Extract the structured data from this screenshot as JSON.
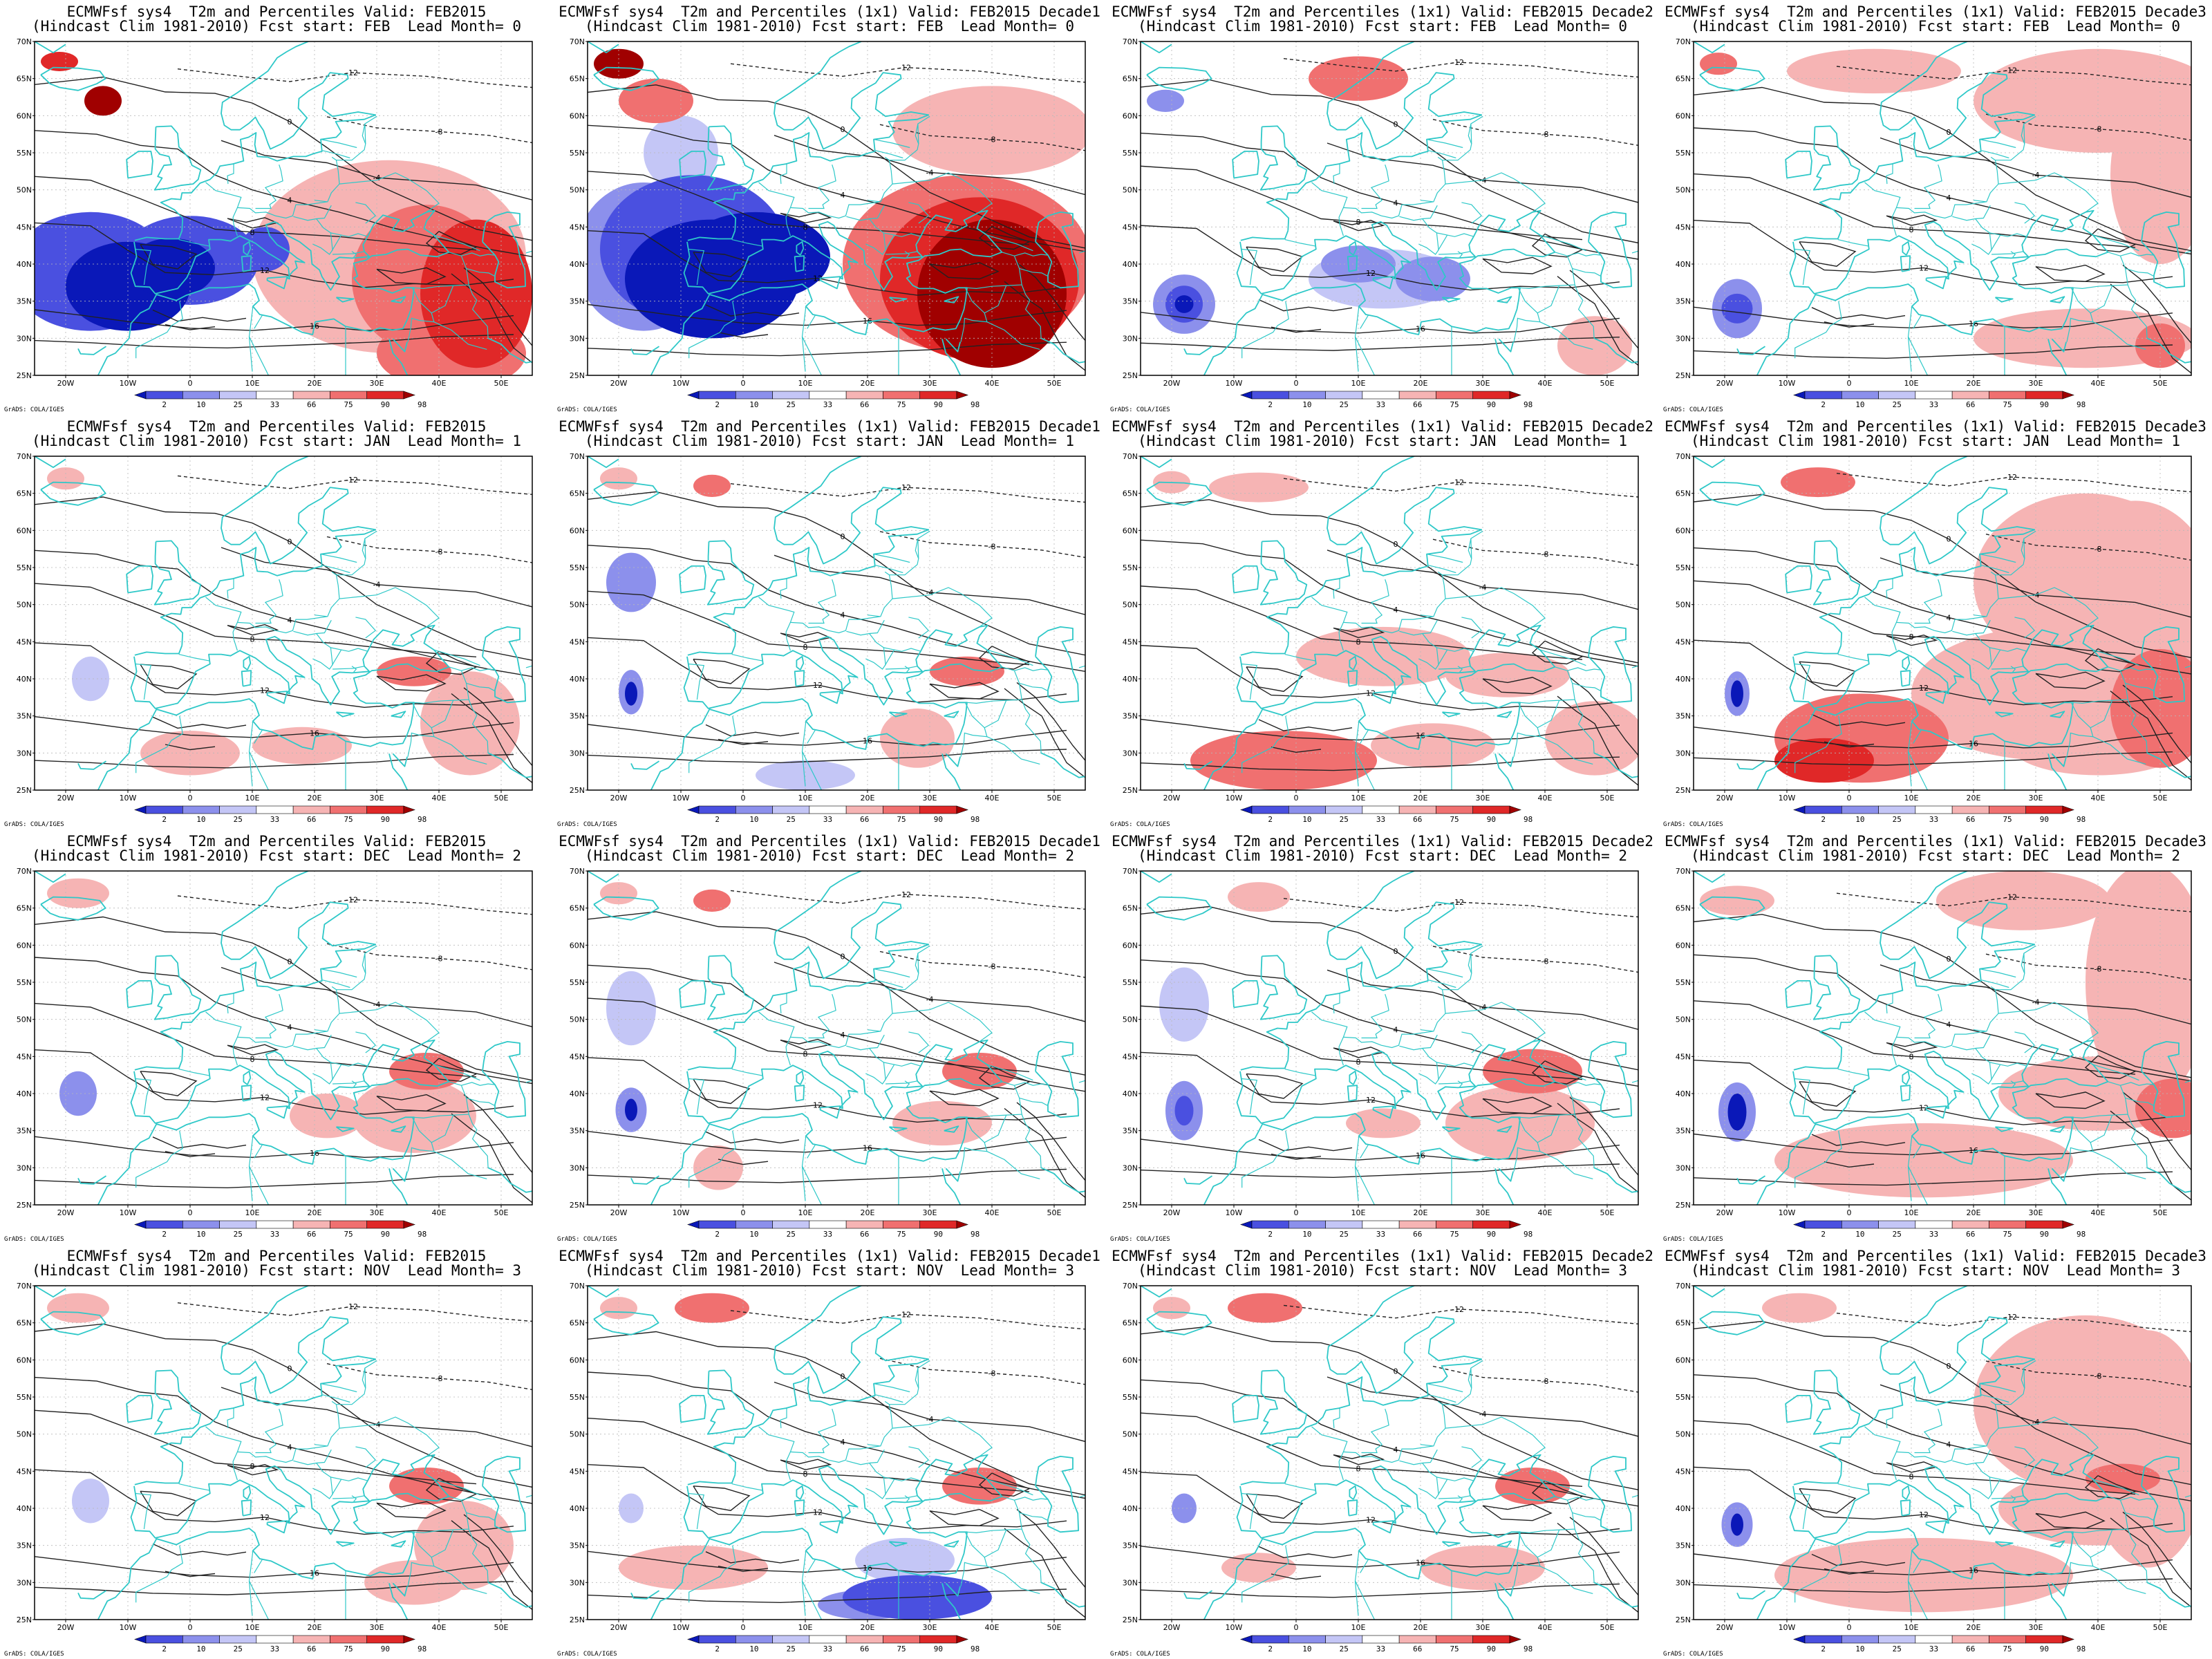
{
  "colors": {
    "land": "#2ec8c8",
    "contour": "#222222",
    "blue": [
      "#0a18b8",
      "#4a50e0",
      "#8c90ec",
      "#c4c6f6"
    ],
    "red": [
      "#a00000",
      "#e02828",
      "#f07070",
      "#f6b4b4"
    ],
    "neutral": "#ffffff"
  },
  "map_labels": {
    "lat": [
      "70N",
      "65N",
      "60N",
      "55N",
      "50N",
      "45N",
      "40N",
      "35N",
      "30N",
      "25N"
    ],
    "lon": [
      "20W",
      "10W",
      "0",
      "10E",
      "20E",
      "30E",
      "40E",
      "50E"
    ]
  },
  "colorbar": {
    "labels": [
      "2",
      "10",
      "25",
      "33",
      "66",
      "75",
      "90",
      "98"
    ],
    "colors": [
      "#0a18b8",
      "#4a50e0",
      "#8c90ec",
      "#c4c6f6",
      "#ffffff",
      "#f6b4b4",
      "#f07070",
      "#e02828",
      "#a00000"
    ]
  },
  "grads_credit": "GrADS: COLA/IGES",
  "panels": [
    {
      "line1": "ECMWFsf sys4  T2m and Percentiles Valid: FEB2015",
      "line2": "(Hindcast Clim 1981-2010) Fcst start: FEB  Lead Month= 0"
    },
    {
      "line1": "ECMWFsf sys4  T2m and Percentiles (1x1) Valid: FEB2015 Decade1",
      "line2": "(Hindcast Clim 1981-2010) Fcst start: FEB  Lead Month= 0"
    },
    {
      "line1": "ECMWFsf sys4  T2m and Percentiles (1x1) Valid: FEB2015 Decade2",
      "line2": "(Hindcast Clim 1981-2010) Fcst start: FEB  Lead Month= 0"
    },
    {
      "line1": "ECMWFsf sys4  T2m and Percentiles (1x1) Valid: FEB2015 Decade3",
      "line2": "(Hindcast Clim 1981-2010) Fcst start: FEB  Lead Month= 0"
    },
    {
      "line1": "ECMWFsf sys4  T2m and Percentiles Valid: FEB2015",
      "line2": "(Hindcast Clim 1981-2010) Fcst start: JAN  Lead Month= 1"
    },
    {
      "line1": "ECMWFsf sys4  T2m and Percentiles (1x1) Valid: FEB2015 Decade1",
      "line2": "(Hindcast Clim 1981-2010) Fcst start: JAN  Lead Month= 1"
    },
    {
      "line1": "ECMWFsf sys4  T2m and Percentiles (1x1) Valid: FEB2015 Decade2",
      "line2": "(Hindcast Clim 1981-2010) Fcst start: JAN  Lead Month= 1"
    },
    {
      "line1": "ECMWFsf sys4  T2m and Percentiles (1x1) Valid: FEB2015 Decade3",
      "line2": "(Hindcast Clim 1981-2010) Fcst start: JAN  Lead Month= 1"
    },
    {
      "line1": "ECMWFsf sys4  T2m and Percentiles Valid: FEB2015",
      "line2": "(Hindcast Clim 1981-2010) Fcst start: DEC  Lead Month= 2"
    },
    {
      "line1": "ECMWFsf sys4  T2m and Percentiles (1x1) Valid: FEB2015 Decade1",
      "line2": "(Hindcast Clim 1981-2010) Fcst start: DEC  Lead Month= 2"
    },
    {
      "line1": "ECMWFsf sys4  T2m and Percentiles (1x1) Valid: FEB2015 Decade2",
      "line2": "(Hindcast Clim 1981-2010) Fcst start: DEC  Lead Month= 2"
    },
    {
      "line1": "ECMWFsf sys4  T2m and Percentiles (1x1) Valid: FEB2015 Decade3",
      "line2": "(Hindcast Clim 1981-2010) Fcst start: DEC  Lead Month= 2"
    },
    {
      "line1": "ECMWFsf sys4  T2m and Percentiles Valid: FEB2015",
      "line2": "(Hindcast Clim 1981-2010) Fcst start: NOV  Lead Month= 3"
    },
    {
      "line1": "ECMWFsf sys4  T2m and Percentiles (1x1) Valid: FEB2015 Decade1",
      "line2": "(Hindcast Clim 1981-2010) Fcst start: NOV  Lead Month= 3"
    },
    {
      "line1": "ECMWFsf sys4  T2m and Percentiles (1x1) Valid: FEB2015 Decade2",
      "line2": "(Hindcast Clim 1981-2010) Fcst start: NOV  Lead Month= 3"
    },
    {
      "line1": "ECMWFsf sys4  T2m and Percentiles (1x1) Valid: FEB2015 Decade3",
      "line2": "(Hindcast Clim 1981-2010) Fcst start: NOV  Lead Month= 3"
    }
  ]
}
